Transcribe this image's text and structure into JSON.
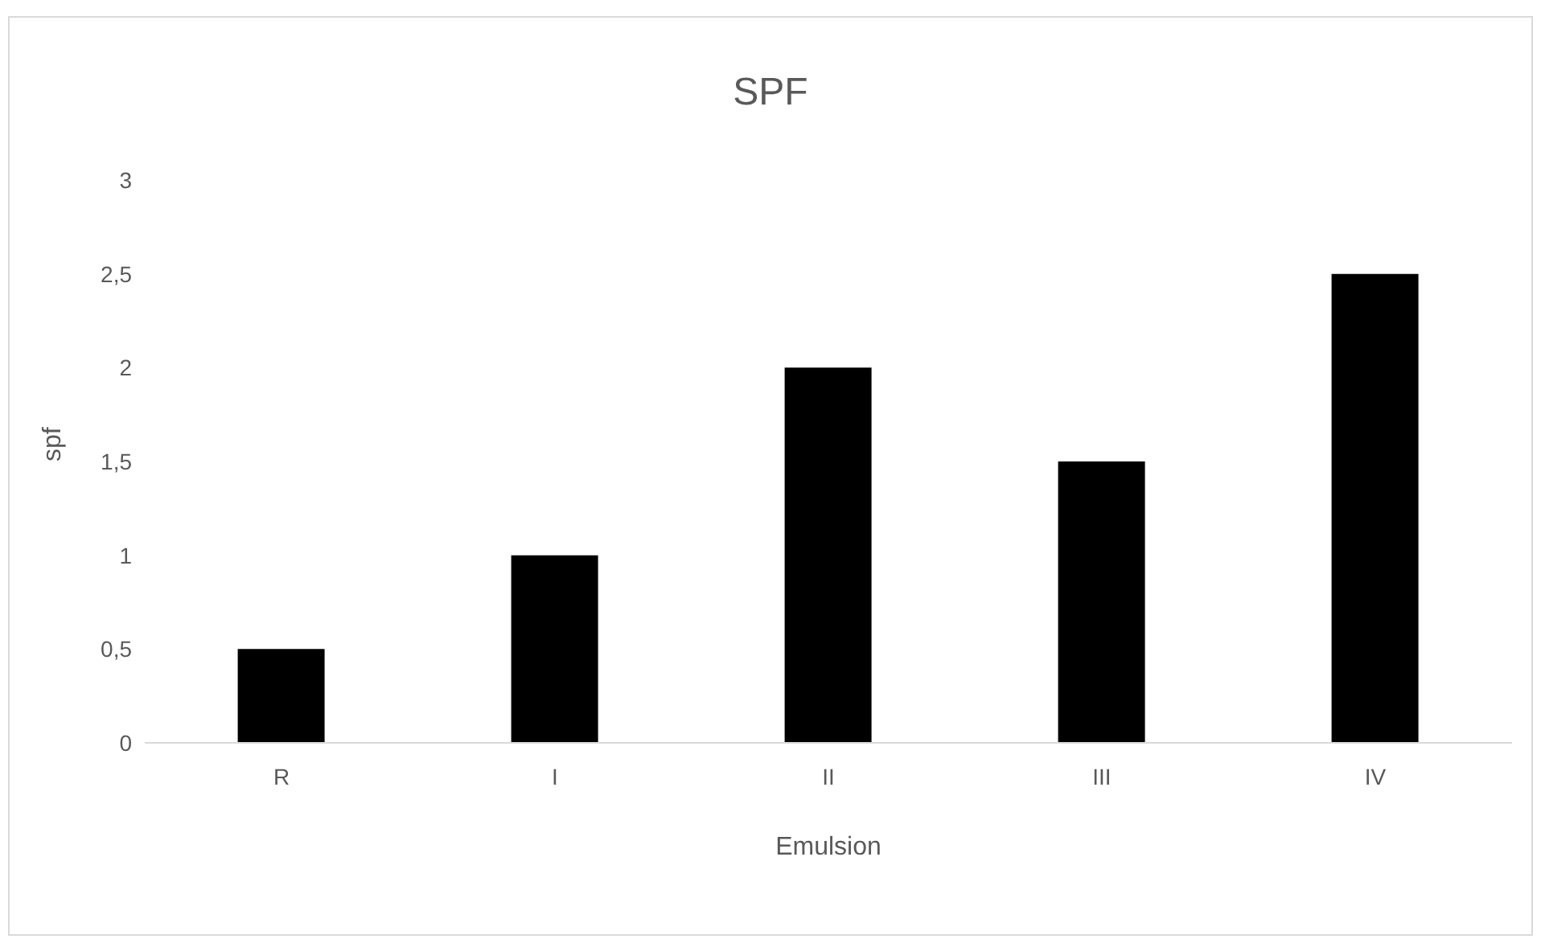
{
  "chart_data": {
    "type": "bar",
    "title": "SPF",
    "xlabel": "Emulsion",
    "ylabel": "spf",
    "categories": [
      "R",
      "I",
      "II",
      "III",
      "IV"
    ],
    "values": [
      0.5,
      1,
      2,
      1.5,
      2.5
    ],
    "color": "#000000",
    "ylim": [
      0,
      3
    ],
    "yticks": [
      0,
      {
        "value": 0.5,
        "label": "0,5"
      },
      1,
      {
        "value": 1.5,
        "label": "1,5"
      },
      2,
      {
        "value": 2.5,
        "label": "2,5"
      },
      3
    ],
    "grid": false,
    "legend": false
  }
}
